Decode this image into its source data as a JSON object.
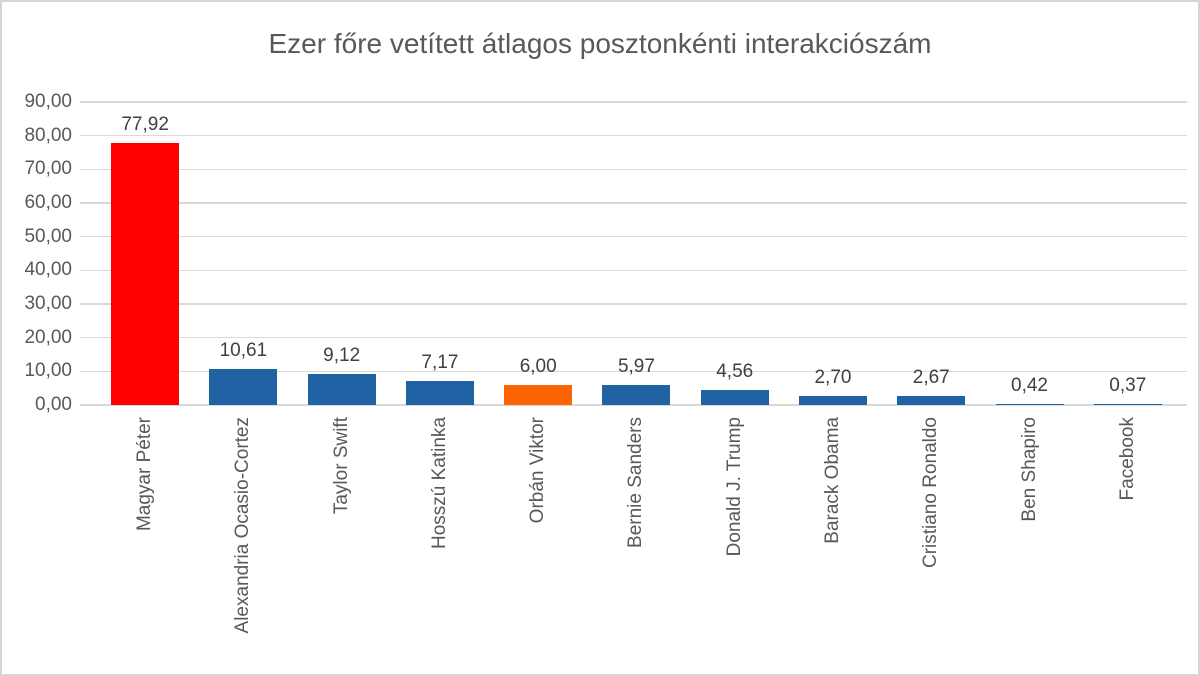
{
  "chart_data": {
    "type": "bar",
    "title": "Ezer főre vetített átlagos posztonkénti interakciószám",
    "categories": [
      "Magyar Péter",
      "Alexandria Ocasio-Cortez",
      "Taylor Swift",
      "Hosszú Katinka",
      "Orbán Viktor",
      "Bernie Sanders",
      "Donald J. Trump",
      "Barack Obama",
      "Cristiano Ronaldo",
      "Ben Shapiro",
      "Facebook"
    ],
    "values": [
      77.92,
      10.61,
      9.12,
      7.17,
      6.0,
      5.97,
      4.56,
      2.7,
      2.67,
      0.42,
      0.37
    ],
    "value_labels": [
      "77,92",
      "10,61",
      "9,12",
      "7,17",
      "6,00",
      "5,97",
      "4,56",
      "2,70",
      "2,67",
      "0,42",
      "0,37"
    ],
    "bar_colors": [
      "#ff0000",
      "#2063a5",
      "#2063a5",
      "#2063a5",
      "#fb6400",
      "#2063a5",
      "#2063a5",
      "#2063a5",
      "#2063a5",
      "#2063a5",
      "#2063a5"
    ],
    "xlabel": "",
    "ylabel": "",
    "y_axis": {
      "min": 0,
      "max": 90,
      "step": 10,
      "tick_labels": [
        "0,00",
        "10,00",
        "20,00",
        "30,00",
        "40,00",
        "50,00",
        "60,00",
        "70,00",
        "80,00",
        "90,00"
      ]
    },
    "grid": true,
    "legend_position": "none",
    "colors": {
      "default_bar": "#2063a5",
      "highlight_red": "#ff0000",
      "highlight_orange": "#fb6400",
      "gridline": "#d9d9d9",
      "axis_text": "#595959",
      "value_text": "#404040",
      "title_text": "#595959",
      "frame_border": "#d6d6d6",
      "background": "#ffffff"
    }
  }
}
